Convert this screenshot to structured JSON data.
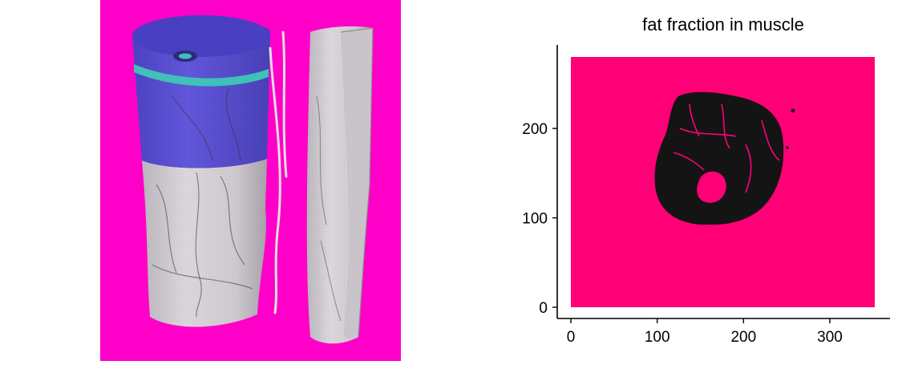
{
  "render": {
    "background_color": "#ff00c8",
    "bone_color": "#d4cfd4",
    "muscle_overlay_color": "#5a4fd6",
    "cartilage_color": "#3fc0b8"
  },
  "plot": {
    "title": "fat fraction in muscle",
    "background_color": "#ff0077",
    "mask_color": "#141414"
  },
  "chart_data": {
    "type": "heatmap",
    "title": "fat fraction in muscle",
    "xlim": [
      0,
      352
    ],
    "ylim": [
      0,
      280
    ],
    "xticks": [
      0,
      100,
      200,
      300
    ],
    "yticks": [
      0,
      100,
      200
    ],
    "xlabel": "",
    "ylabel": "",
    "grid": false
  }
}
